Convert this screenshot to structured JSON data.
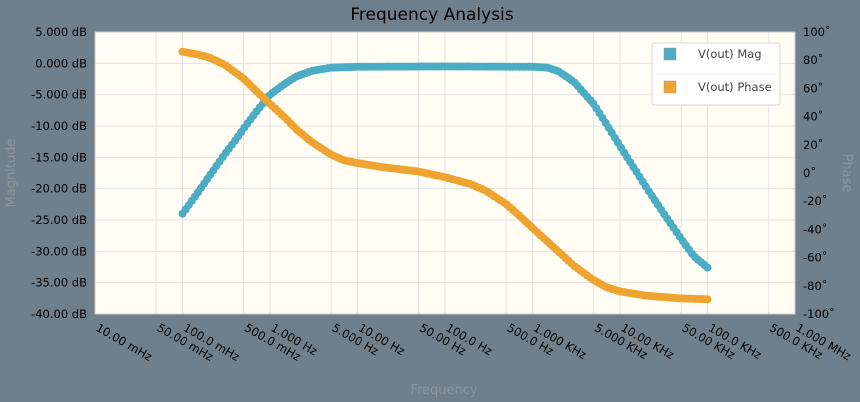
{
  "chart_data": {
    "type": "line",
    "title": "Frequency Analysis",
    "xlabel": "Frequency",
    "ylabel_left": "Magnitude",
    "ylabel_right": "Phase",
    "x_scale": "log",
    "x_unit": "Hz",
    "xlim": [
      0.01,
      1000000
    ],
    "x_ticks": [
      {
        "value": 0.01,
        "label": "10.00 mHz"
      },
      {
        "value": 0.05,
        "label": "50.00 mHz"
      },
      {
        "value": 0.1,
        "label": "100.0 mHz"
      },
      {
        "value": 0.5,
        "label": "500.0 mHz"
      },
      {
        "value": 1,
        "label": "1.000 Hz"
      },
      {
        "value": 5,
        "label": "5.000 Hz"
      },
      {
        "value": 10,
        "label": "10.00 Hz"
      },
      {
        "value": 50,
        "label": "50.00 Hz"
      },
      {
        "value": 100,
        "label": "100.0 Hz"
      },
      {
        "value": 500,
        "label": "500.0 Hz"
      },
      {
        "value": 1000,
        "label": "1.000 KHz"
      },
      {
        "value": 5000,
        "label": "5.000 KHz"
      },
      {
        "value": 10000,
        "label": "10.00 KHz"
      },
      {
        "value": 50000,
        "label": "50.00 KHz"
      },
      {
        "value": 100000,
        "label": "100.0 KHz"
      },
      {
        "value": 500000,
        "label": "500.0 KHz"
      },
      {
        "value": 1000000,
        "label": "1.000 MHz"
      }
    ],
    "y_left_lim": [
      -40,
      5
    ],
    "y_left_ticks": [
      {
        "value": 5,
        "label": "5.000 dB"
      },
      {
        "value": 0,
        "label": "0.000 dB"
      },
      {
        "value": -5,
        "label": "-5.000 dB"
      },
      {
        "value": -10,
        "label": "-10.00 dB"
      },
      {
        "value": -15,
        "label": "-15.00 dB"
      },
      {
        "value": -20,
        "label": "-20.00 dB"
      },
      {
        "value": -25,
        "label": "-25.00 dB"
      },
      {
        "value": -30,
        "label": "-30.00 dB"
      },
      {
        "value": -35,
        "label": "-35.00 dB"
      },
      {
        "value": -40,
        "label": "-40.00 dB"
      }
    ],
    "y_right_lim": [
      -100,
      100
    ],
    "y_right_ticks": [
      {
        "value": 100,
        "label": "100˚"
      },
      {
        "value": 80,
        "label": "80˚"
      },
      {
        "value": 60,
        "label": "60˚"
      },
      {
        "value": 40,
        "label": "40˚"
      },
      {
        "value": 20,
        "label": "20˚"
      },
      {
        "value": 0,
        "label": "0˚"
      },
      {
        "value": -20,
        "label": "-20˚"
      },
      {
        "value": -40,
        "label": "-40˚"
      },
      {
        "value": -60,
        "label": "-60˚"
      },
      {
        "value": -80,
        "label": "-80˚"
      },
      {
        "value": -100,
        "label": "-100˚"
      }
    ],
    "grid": true,
    "legend_position": "top-right",
    "series": [
      {
        "name": "V(out) Mag",
        "axis": "left",
        "color": "#4aacc5",
        "points": [
          [
            0.1,
            -24.0
          ],
          [
            0.15,
            -20.6
          ],
          [
            0.2,
            -18.1
          ],
          [
            0.3,
            -14.6
          ],
          [
            0.4,
            -12.3
          ],
          [
            0.5,
            -10.4
          ],
          [
            0.7,
            -7.7
          ],
          [
            1,
            -5.0
          ],
          [
            1.5,
            -3.2
          ],
          [
            2,
            -2.1
          ],
          [
            3,
            -1.2
          ],
          [
            5,
            -0.7
          ],
          [
            10,
            -0.55
          ],
          [
            100,
            -0.5
          ],
          [
            1000,
            -0.55
          ],
          [
            1500,
            -0.7
          ],
          [
            2000,
            -1.3
          ],
          [
            3000,
            -3.0
          ],
          [
            5000,
            -6.5
          ],
          [
            7000,
            -9.7
          ],
          [
            10000,
            -13.2
          ],
          [
            20000,
            -19.8
          ],
          [
            30000,
            -23.5
          ],
          [
            50000,
            -28.0
          ],
          [
            70000,
            -30.8
          ],
          [
            100000,
            -32.6
          ]
        ]
      },
      {
        "name": "V(out) Phase",
        "axis": "right",
        "color": "#f0a430",
        "points": [
          [
            0.1,
            86
          ],
          [
            0.15,
            84
          ],
          [
            0.2,
            82
          ],
          [
            0.3,
            77
          ],
          [
            0.5,
            67
          ],
          [
            0.7,
            58
          ],
          [
            1,
            49
          ],
          [
            1.5,
            39
          ],
          [
            2,
            31
          ],
          [
            3,
            22
          ],
          [
            5,
            13
          ],
          [
            7,
            9
          ],
          [
            10,
            7
          ],
          [
            20,
            4
          ],
          [
            50,
            1
          ],
          [
            100,
            -3
          ],
          [
            200,
            -8
          ],
          [
            300,
            -13
          ],
          [
            500,
            -22
          ],
          [
            700,
            -30
          ],
          [
            1000,
            -39
          ],
          [
            2000,
            -56
          ],
          [
            3000,
            -66
          ],
          [
            5000,
            -76
          ],
          [
            7000,
            -81
          ],
          [
            10000,
            -84
          ],
          [
            20000,
            -87
          ],
          [
            50000,
            -89
          ],
          [
            100000,
            -89.5
          ]
        ]
      }
    ]
  }
}
